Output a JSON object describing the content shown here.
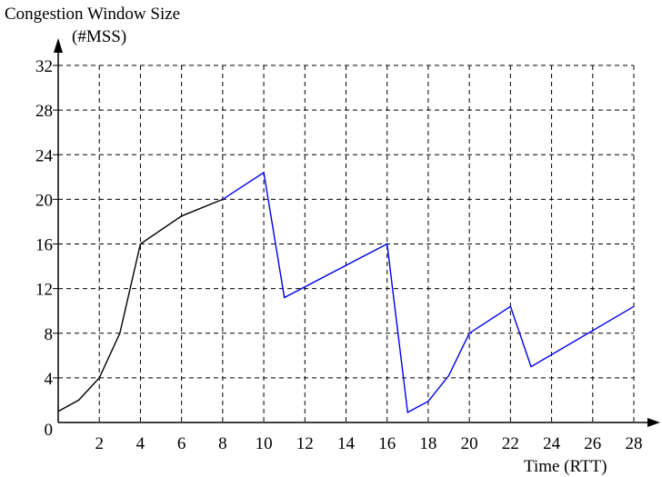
{
  "chart_data": {
    "type": "line",
    "title": "Congestion Window Size",
    "ylabel": "(#MSS)",
    "xlabel": "Time (RTT)",
    "x_ticks": [
      2,
      4,
      6,
      8,
      10,
      12,
      14,
      16,
      18,
      20,
      22,
      24,
      26,
      28
    ],
    "y_ticks": [
      0,
      4,
      8,
      12,
      16,
      20,
      24,
      28,
      32
    ],
    "xlim": [
      0,
      28
    ],
    "ylim": [
      0,
      32
    ],
    "grid": true,
    "series": [
      {
        "color": "#000000",
        "x": [
          0,
          1,
          2,
          3,
          4,
          6,
          8
        ],
        "y": [
          1,
          2,
          4,
          8,
          16,
          18.5,
          20
        ]
      },
      {
        "color": "#0000ee",
        "x": [
          8,
          10,
          11,
          16,
          17,
          18,
          19,
          20,
          22,
          23,
          28
        ],
        "y": [
          20,
          22.4,
          11.2,
          16,
          0.9,
          1.9,
          4.2,
          8,
          10.4,
          5,
          10.4
        ]
      }
    ]
  }
}
